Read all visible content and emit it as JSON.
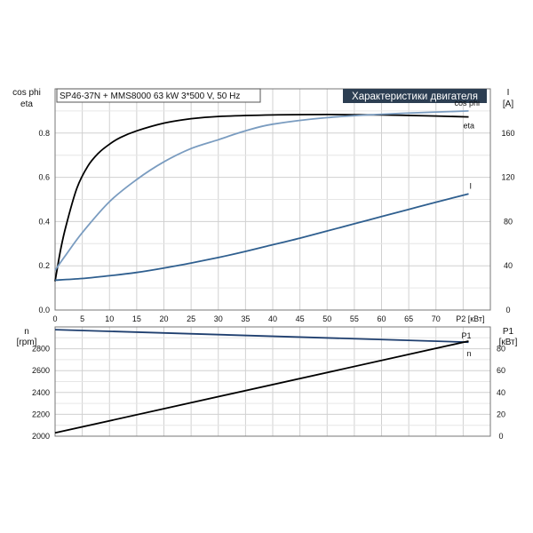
{
  "header": {
    "model_label": "SP46-37N + MMS8000   63 kW   3*500 V, 50 Hz",
    "title": "Характеристики двигателя"
  },
  "chart_data": [
    {
      "type": "line",
      "title": "Характеристики двигателя",
      "xlabel": "P2 [кВт]",
      "ylabel_left": "cos phi\neta",
      "ylabel_right": "I\n[A]",
      "xlim": [
        0,
        80
      ],
      "ylim_left": [
        0,
        1.0
      ],
      "ylim_right": [
        0,
        200
      ],
      "x_ticks": [
        "0",
        "5",
        "10",
        "15",
        "20",
        "25",
        "30",
        "35",
        "40",
        "45",
        "50",
        "55",
        "60",
        "65",
        "70",
        "P2 [кВт]"
      ],
      "y_left_ticks": [
        "0.0",
        "0.2",
        "0.4",
        "0.6",
        "0.8"
      ],
      "y_right_ticks": [
        "0",
        "40",
        "80",
        "120",
        "160"
      ],
      "grid": true,
      "series": [
        {
          "name": "eta",
          "axis": "left",
          "color": "#000000",
          "x": [
            0,
            1,
            2,
            4,
            6,
            8,
            10,
            12,
            15,
            20,
            25,
            30,
            40,
            50,
            60,
            70,
            76
          ],
          "y": [
            0.13,
            0.27,
            0.38,
            0.55,
            0.65,
            0.71,
            0.75,
            0.78,
            0.81,
            0.845,
            0.865,
            0.875,
            0.882,
            0.884,
            0.882,
            0.877,
            0.873
          ]
        },
        {
          "name": "cos phi",
          "axis": "left",
          "color": "#7a9cc0",
          "x": [
            0,
            2,
            5,
            10,
            15,
            20,
            25,
            30,
            35,
            40,
            50,
            60,
            70,
            76
          ],
          "y": [
            0.18,
            0.25,
            0.35,
            0.49,
            0.59,
            0.67,
            0.73,
            0.77,
            0.81,
            0.84,
            0.87,
            0.885,
            0.895,
            0.9
          ]
        },
        {
          "name": "I",
          "axis": "right",
          "color": "#2f5f8f",
          "x": [
            0,
            5,
            10,
            15,
            20,
            25,
            30,
            35,
            40,
            45,
            50,
            55,
            60,
            65,
            70,
            76
          ],
          "y": [
            27,
            28.5,
            31,
            34,
            38,
            42.5,
            47.5,
            53,
            59,
            65,
            71.5,
            78,
            84.5,
            91,
            97.5,
            105
          ]
        }
      ]
    },
    {
      "type": "line",
      "xlim": [
        0,
        80
      ],
      "ylabel_left": "n\n[rpm]",
      "ylabel_right": "P1\n[кВт]",
      "ylim_left": [
        2000,
        3000
      ],
      "ylim_right": [
        0,
        100
      ],
      "y_left_ticks": [
        "2000",
        "2200",
        "2400",
        "2600",
        "2800"
      ],
      "y_right_ticks": [
        "0",
        "20",
        "40",
        "60",
        "80"
      ],
      "grid": true,
      "series": [
        {
          "name": "n",
          "axis": "left",
          "color": "#1f3f6f",
          "x": [
            0,
            76
          ],
          "y": [
            2975,
            2860
          ]
        },
        {
          "name": "P1",
          "axis": "right",
          "color": "#000000",
          "x": [
            0,
            76
          ],
          "y": [
            3,
            87
          ]
        }
      ]
    }
  ]
}
